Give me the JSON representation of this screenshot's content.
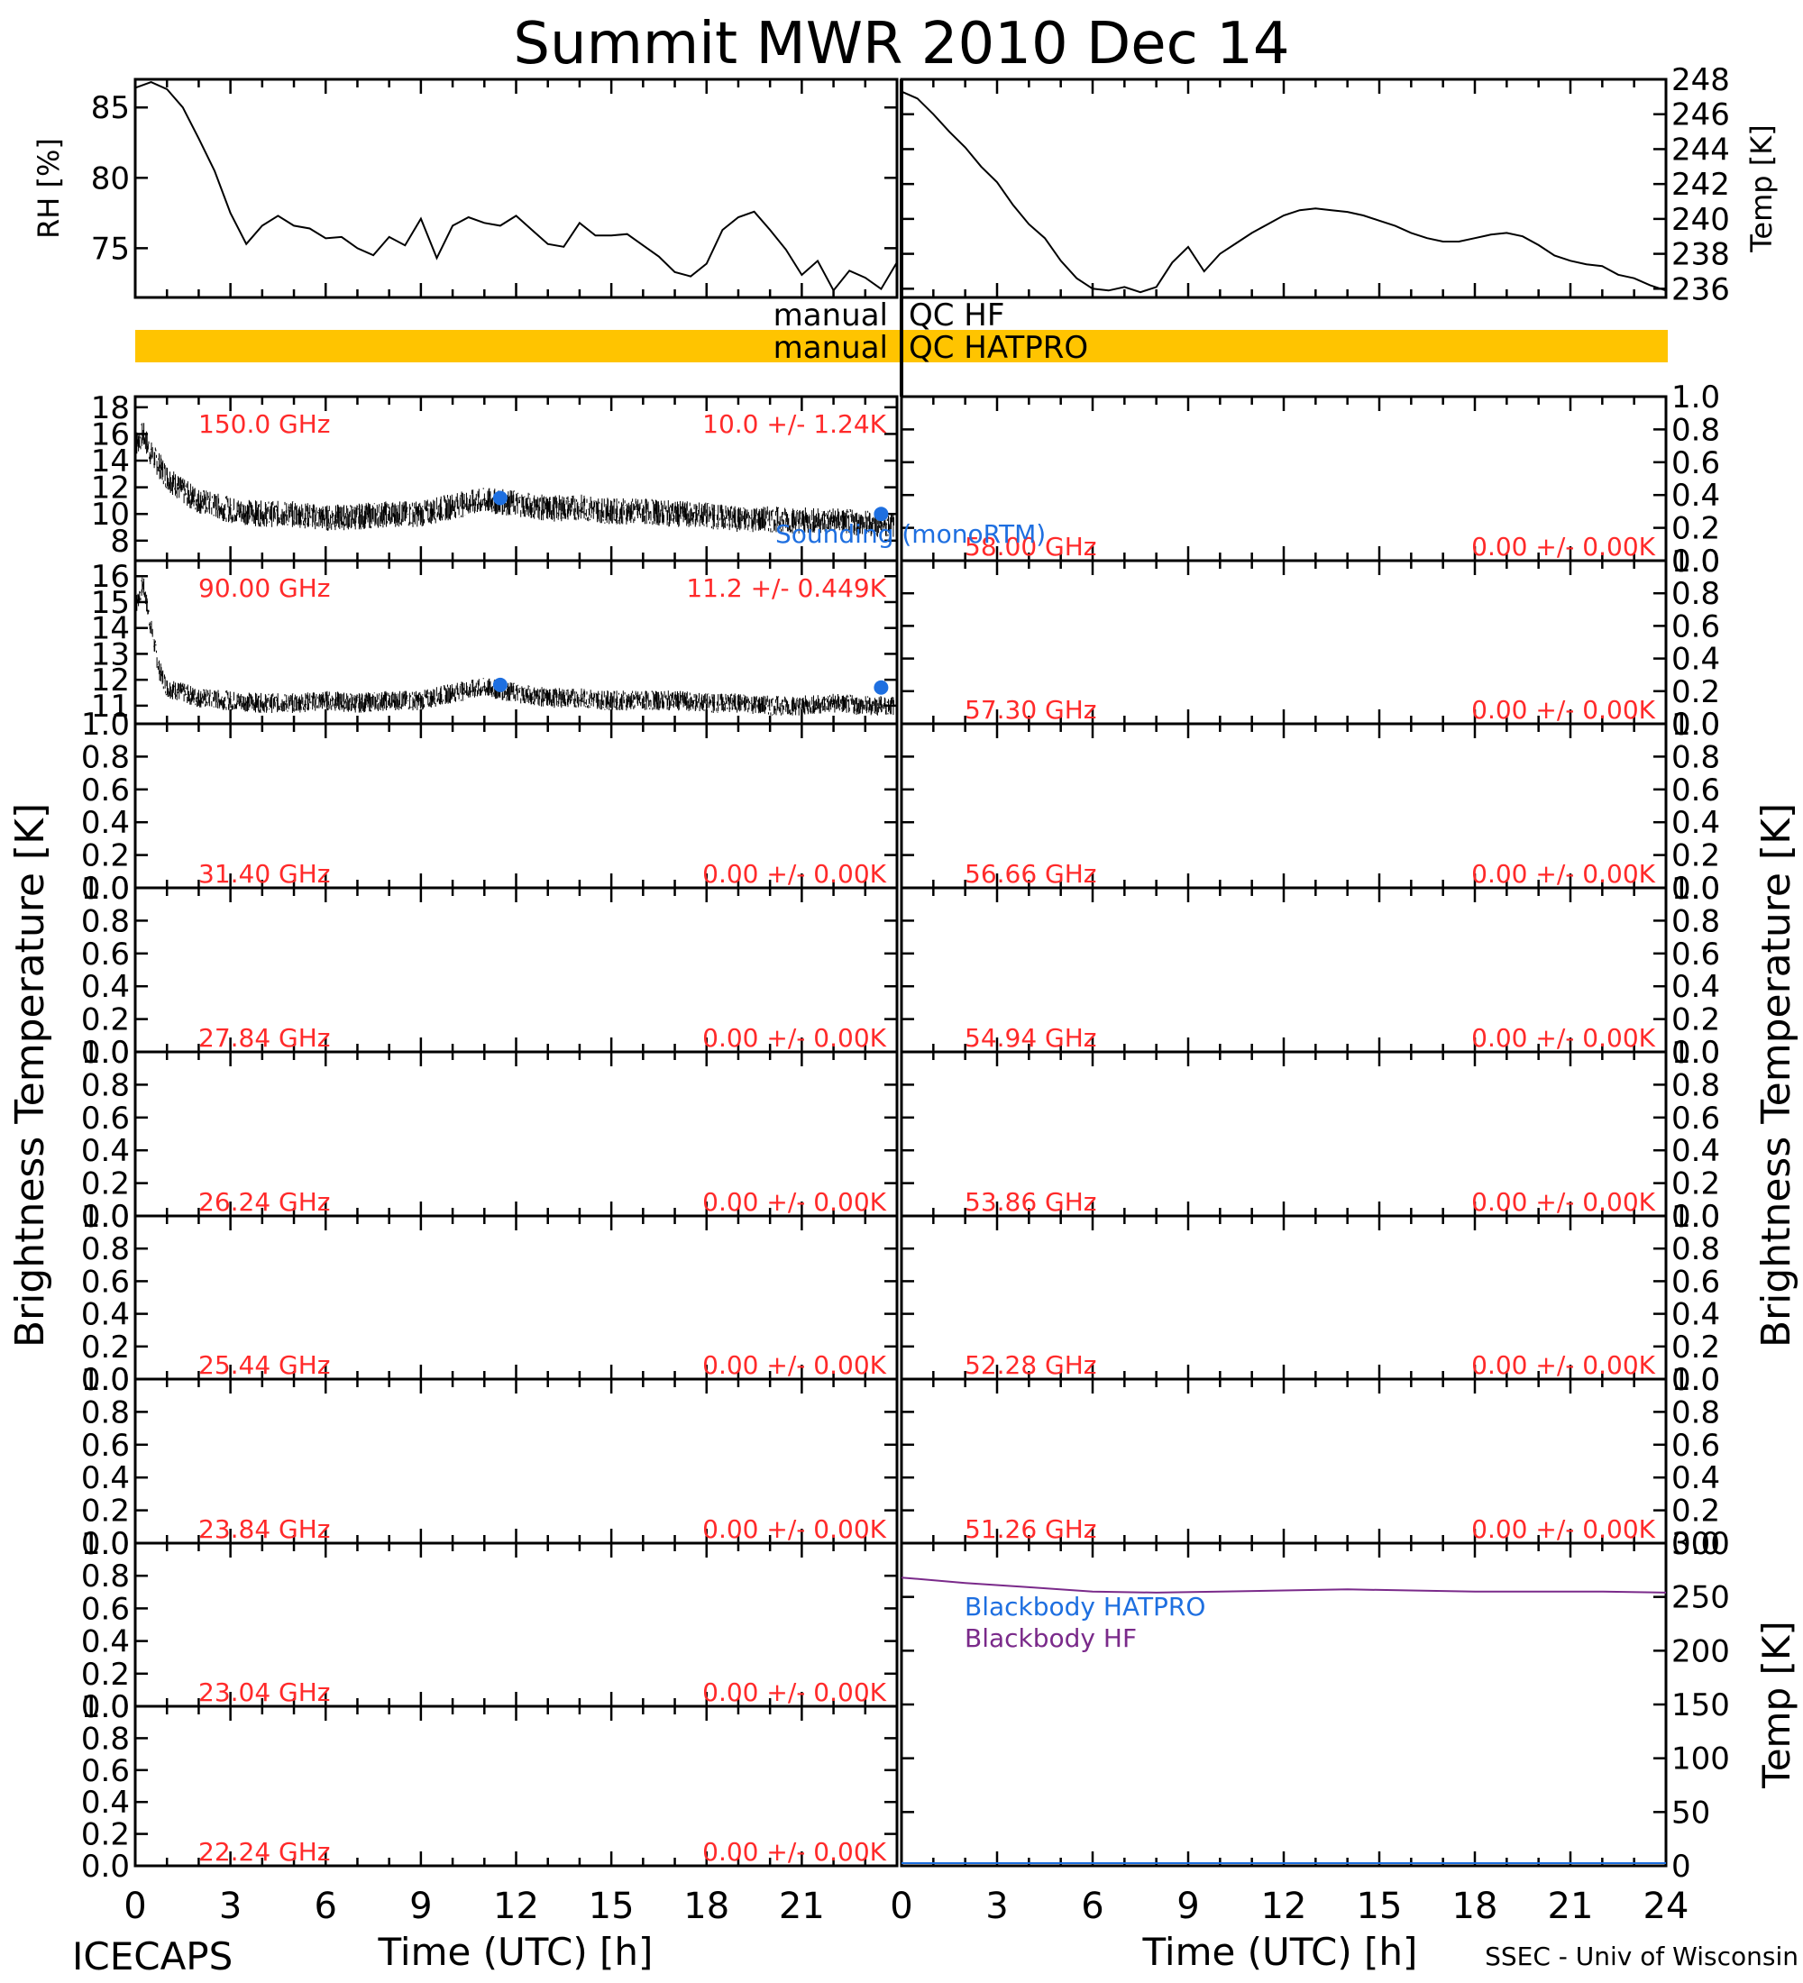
{
  "title": "Summit MWR 2010 Dec 14",
  "footer_left": "ICECAPS",
  "footer_right": "SSEC - Univ of Wisconsin",
  "colors": {
    "red": "#ff2a2a",
    "blue": "#1e6fe0",
    "purple": "#7a2a8a",
    "orange": "#ffc400",
    "black": "#000000"
  },
  "qc_bars": [
    {
      "text_left": "manual",
      "text_right": "QC HF",
      "filled": false
    },
    {
      "text_left": "manual",
      "text_right": "QC HATPRO",
      "filled": true
    }
  ],
  "chart_data": [
    {
      "id": "rh",
      "type": "line",
      "ylabel": "RH [%]",
      "ylim": [
        71.5,
        87
      ],
      "yticks": [
        75,
        80,
        85
      ],
      "xlim": [
        0,
        24
      ],
      "x": [
        0,
        0.5,
        1,
        1.5,
        2,
        2.5,
        3,
        3.5,
        4,
        4.5,
        5,
        5.5,
        6,
        6.5,
        7,
        7.5,
        8,
        8.5,
        9,
        9.5,
        10,
        10.5,
        11,
        11.5,
        12,
        12.5,
        13,
        13.5,
        14,
        14.5,
        15,
        15.5,
        16,
        16.5,
        17,
        17.5,
        18,
        18.5,
        19,
        19.5,
        20,
        20.5,
        21,
        21.5,
        22,
        22.5,
        23,
        23.5,
        24
      ],
      "y": [
        86.4,
        86.8,
        86.3,
        85,
        82.8,
        80.5,
        77.5,
        75.3,
        76.6,
        77.3,
        76.6,
        76.4,
        75.7,
        75.8,
        75,
        74.5,
        75.8,
        75.2,
        77.1,
        74.3,
        76.6,
        77.2,
        76.8,
        76.6,
        77.3,
        76.3,
        75.3,
        75.1,
        76.8,
        75.9,
        75.9,
        76,
        75.2,
        74.4,
        73.3,
        73,
        73.9,
        76.3,
        77.2,
        77.6,
        76.3,
        74.9,
        73.1,
        74.1,
        72,
        73.4,
        72.9,
        72.1,
        74
      ]
    },
    {
      "id": "temp",
      "type": "line",
      "ylabel": "Temp [K]",
      "ylim": [
        235.5,
        248
      ],
      "yticks": [
        236,
        238,
        240,
        242,
        244,
        246,
        248
      ],
      "xlim": [
        0,
        24
      ],
      "x": [
        0,
        0.5,
        1,
        1.5,
        2,
        2.5,
        3,
        3.5,
        4,
        4.5,
        5,
        5.5,
        6,
        6.5,
        7,
        7.5,
        8,
        8.5,
        9,
        9.5,
        10,
        10.5,
        11,
        11.5,
        12,
        12.5,
        13,
        13.5,
        14,
        14.5,
        15,
        15.5,
        16,
        16.5,
        17,
        17.5,
        18,
        18.5,
        19,
        19.5,
        20,
        20.5,
        21,
        21.5,
        22,
        22.5,
        23,
        23.5,
        24
      ],
      "y": [
        247.3,
        246.9,
        246,
        245,
        244.1,
        243,
        242.1,
        240.8,
        239.7,
        238.9,
        237.6,
        236.6,
        236,
        235.9,
        236.1,
        235.8,
        236.1,
        237.5,
        238.4,
        237,
        238,
        238.6,
        239.2,
        239.7,
        240.2,
        240.5,
        240.6,
        240.5,
        240.4,
        240.2,
        239.9,
        239.6,
        239.2,
        238.9,
        238.7,
        238.7,
        238.9,
        239.1,
        239.2,
        239,
        238.5,
        237.9,
        237.6,
        237.4,
        237.3,
        236.8,
        236.6,
        236.2,
        235.9
      ]
    },
    {
      "id": "ch150",
      "type": "scatter",
      "ylim": [
        6.5,
        18.8
      ],
      "yticks": [
        8,
        10,
        12,
        14,
        16,
        18
      ],
      "xlim": [
        0,
        24
      ],
      "label_freq": "150.0 GHz",
      "label_stat": "10.0 +/-  1.24K",
      "x": [
        0,
        0.25,
        0.5,
        1,
        1.5,
        2,
        3,
        4,
        5,
        6,
        7,
        8,
        9,
        10,
        11,
        12,
        13,
        14,
        15,
        16,
        17,
        18,
        19,
        20,
        21,
        22,
        23,
        23.8
      ],
      "y": [
        15.2,
        16,
        14.5,
        12.8,
        11.7,
        11,
        10.3,
        10,
        10,
        9.7,
        9.8,
        10,
        10,
        10.6,
        11,
        10.8,
        10.4,
        10.5,
        10.2,
        10.2,
        10,
        9.9,
        9.6,
        9.6,
        9.5,
        9.5,
        9.3,
        9.2
      ],
      "spread": 0.9,
      "sounding": [
        [
          11.5,
          11.2
        ],
        [
          23.5,
          10
        ]
      ],
      "sounding_label": "Sounding (monoRTM)"
    },
    {
      "id": "ch90",
      "type": "scatter",
      "ylim": [
        10.3,
        16.6
      ],
      "yticks": [
        11,
        12,
        13,
        14,
        15,
        16
      ],
      "xlim": [
        0,
        24
      ],
      "label_freq": "90.00 GHz",
      "label_stat": "11.2 +/- 0.449K",
      "x": [
        0,
        0.25,
        0.5,
        0.75,
        1,
        1.5,
        2,
        3,
        4,
        5,
        6,
        7,
        8,
        9,
        10,
        11,
        12,
        13,
        14,
        15,
        16,
        17,
        18,
        19,
        20,
        21,
        22,
        23,
        23.8
      ],
      "y": [
        14.8,
        15.7,
        14,
        12.4,
        11.7,
        11.5,
        11.3,
        11.2,
        11.1,
        11.1,
        11.2,
        11.1,
        11.2,
        11.2,
        11.5,
        11.7,
        11.5,
        11.3,
        11.3,
        11.2,
        11.2,
        11.2,
        11.1,
        11.1,
        11,
        11,
        11.1,
        11,
        11
      ],
      "spread": 0.35,
      "sounding": [
        [
          11.5,
          11.8
        ],
        [
          23.5,
          11.7
        ]
      ]
    },
    {
      "id": "r58_00",
      "label_freq": "58.00 GHz",
      "label_stat": "0.00 +/-  0.00K",
      "ylim": [
        0,
        1
      ],
      "yticks": [
        0,
        0.2,
        0.4,
        0.6,
        0.8,
        1.0
      ]
    },
    {
      "id": "r57_30",
      "label_freq": "57.30 GHz",
      "label_stat": "0.00 +/-  0.00K",
      "ylim": [
        0,
        1
      ],
      "yticks": [
        0,
        0.2,
        0.4,
        0.6,
        0.8,
        1.0
      ]
    },
    {
      "id": "l31_40",
      "label_freq": "31.40 GHz",
      "label_stat": "0.00 +/-  0.00K",
      "ylim": [
        0,
        1
      ],
      "yticks": [
        0,
        0.2,
        0.4,
        0.6,
        0.8,
        1.0
      ]
    },
    {
      "id": "r56_66",
      "label_freq": "56.66 GHz",
      "label_stat": "0.00 +/-  0.00K",
      "ylim": [
        0,
        1
      ],
      "yticks": [
        0,
        0.2,
        0.4,
        0.6,
        0.8,
        1.0
      ]
    },
    {
      "id": "l27_84",
      "label_freq": "27.84 GHz",
      "label_stat": "0.00 +/-  0.00K",
      "ylim": [
        0,
        1
      ],
      "yticks": [
        0,
        0.2,
        0.4,
        0.6,
        0.8,
        1.0
      ]
    },
    {
      "id": "r54_94",
      "label_freq": "54.94 GHz",
      "label_stat": "0.00 +/-  0.00K",
      "ylim": [
        0,
        1
      ],
      "yticks": [
        0,
        0.2,
        0.4,
        0.6,
        0.8,
        1.0
      ]
    },
    {
      "id": "l26_24",
      "label_freq": "26.24 GHz",
      "label_stat": "0.00 +/-  0.00K",
      "ylim": [
        0,
        1
      ],
      "yticks": [
        0,
        0.2,
        0.4,
        0.6,
        0.8,
        1.0
      ]
    },
    {
      "id": "r53_86",
      "label_freq": "53.86 GHz",
      "label_stat": "0.00 +/-  0.00K",
      "ylim": [
        0,
        1
      ],
      "yticks": [
        0,
        0.2,
        0.4,
        0.6,
        0.8,
        1.0
      ]
    },
    {
      "id": "l25_44",
      "label_freq": "25.44 GHz",
      "label_stat": "0.00 +/-  0.00K",
      "ylim": [
        0,
        1
      ],
      "yticks": [
        0,
        0.2,
        0.4,
        0.6,
        0.8,
        1.0
      ]
    },
    {
      "id": "r52_28",
      "label_freq": "52.28 GHz",
      "label_stat": "0.00 +/-  0.00K",
      "ylim": [
        0,
        1
      ],
      "yticks": [
        0,
        0.2,
        0.4,
        0.6,
        0.8,
        1.0
      ]
    },
    {
      "id": "l23_84",
      "label_freq": "23.84 GHz",
      "label_stat": "0.00 +/-  0.00K",
      "ylim": [
        0,
        1
      ],
      "yticks": [
        0,
        0.2,
        0.4,
        0.6,
        0.8,
        1.0
      ]
    },
    {
      "id": "r51_26",
      "label_freq": "51.26 GHz",
      "label_stat": "0.00 +/-  0.00K",
      "ylim": [
        0,
        1
      ],
      "yticks": [
        0,
        0.2,
        0.4,
        0.6,
        0.8,
        1.0
      ]
    },
    {
      "id": "l23_04",
      "label_freq": "23.04 GHz",
      "label_stat": "0.00 +/-  0.00K",
      "ylim": [
        0,
        1
      ],
      "yticks": [
        0,
        0.2,
        0.4,
        0.6,
        0.8,
        1.0
      ]
    },
    {
      "id": "l22_24",
      "label_freq": "22.24 GHz",
      "label_stat": "0.00 +/-  0.00K",
      "ylim": [
        0,
        1
      ],
      "yticks": [
        0,
        0.2,
        0.4,
        0.6,
        0.8,
        1.0
      ]
    },
    {
      "id": "bb",
      "type": "line",
      "ylabel": "Temp [K]",
      "ylim": [
        0,
        300
      ],
      "yticks": [
        0,
        50,
        100,
        150,
        200,
        250,
        300
      ],
      "xlim": [
        0,
        24
      ],
      "legend": [
        "Blackbody HATPRO",
        "Blackbody HF"
      ],
      "series": [
        {
          "name": "Blackbody HF",
          "x": [
            0,
            2,
            4,
            6,
            8,
            10,
            12,
            14,
            16,
            18,
            20,
            22,
            24
          ],
          "y": [
            268,
            263,
            259,
            255,
            254,
            255,
            256,
            257,
            256,
            255,
            255,
            255,
            254
          ]
        }
      ]
    }
  ],
  "axes": {
    "left_ylabel": "Brightness Temperature [K]",
    "right_ylabel": "Brightness Temperature [K]",
    "xlabel": "Time (UTC) [h]",
    "left_xticks": [
      "0",
      "3",
      "6",
      "9",
      "12",
      "15",
      "18",
      "21"
    ],
    "right_xticks": [
      "0",
      "3",
      "6",
      "9",
      "12",
      "15",
      "18",
      "21",
      "24"
    ]
  }
}
